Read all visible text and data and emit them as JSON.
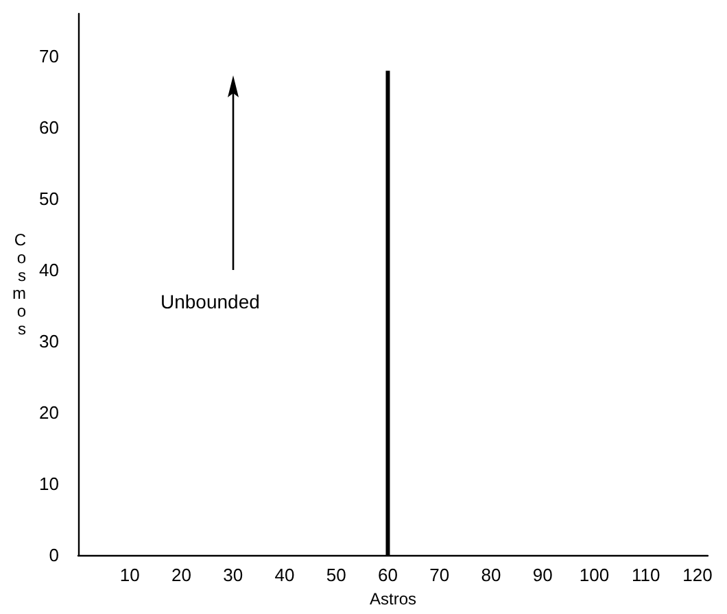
{
  "chart_data": {
    "type": "bar",
    "xlabel": "Astros",
    "ylabel": "Cosmos",
    "xlim": [
      0,
      122
    ],
    "xticks": [
      10,
      20,
      30,
      40,
      50,
      60,
      70,
      80,
      90,
      100,
      110,
      120
    ],
    "ylim": [
      0,
      76
    ],
    "yticks": [
      0,
      10,
      20,
      30,
      40,
      50,
      60,
      70
    ],
    "series": [
      {
        "x": [
          60
        ],
        "values": [
          68
        ],
        "color": "#000000"
      }
    ],
    "annotations": [
      "Unbounded"
    ]
  }
}
